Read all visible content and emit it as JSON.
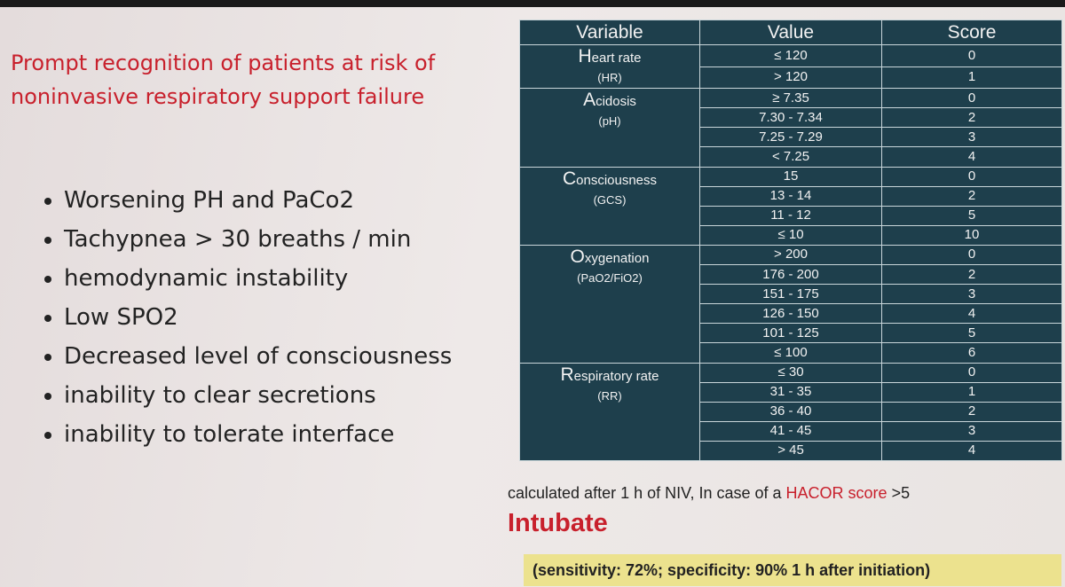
{
  "title": "Prompt recognition of patients at risk of noninvasive respiratory support failure",
  "bullets": [
    "Worsening PH and PaCo2",
    "Tachypnea > 30 breaths / min",
    "hemodynamic instability",
    "Low SPO2",
    "Decreased level of consciousness",
    "inability to clear secretions",
    "inability to tolerate interface"
  ],
  "table": {
    "header": [
      "Variable",
      "Value",
      "Score"
    ],
    "groups": [
      {
        "name": "Heart rate",
        "unit": "(HR)",
        "rows": [
          [
            "≤ 120",
            "0"
          ],
          [
            "> 120",
            "1"
          ]
        ]
      },
      {
        "name": "Acidosis",
        "unit": "(pH)",
        "rows": [
          [
            "≥ 7.35",
            "0"
          ],
          [
            "7.30 - 7.34",
            "2"
          ],
          [
            "7.25 - 7.29",
            "3"
          ],
          [
            "< 7.25",
            "4"
          ]
        ]
      },
      {
        "name": "Consciousness",
        "unit": "(GCS)",
        "rows": [
          [
            "15",
            "0"
          ],
          [
            "13 - 14",
            "2"
          ],
          [
            "11 - 12",
            "5"
          ],
          [
            "≤ 10",
            "10"
          ]
        ]
      },
      {
        "name": "Oxygenation",
        "unit": "(PaO2/FiO2)",
        "rows": [
          [
            "> 200",
            "0"
          ],
          [
            "176 - 200",
            "2"
          ],
          [
            "151 - 175",
            "3"
          ],
          [
            "126 - 150",
            "4"
          ],
          [
            "101 - 125",
            "5"
          ],
          [
            "≤ 100",
            "6"
          ]
        ]
      },
      {
        "name": "Respiratory rate",
        "unit": "(RR)",
        "rows": [
          [
            "≤ 30",
            "0"
          ],
          [
            "31 - 35",
            "1"
          ],
          [
            "36 - 40",
            "2"
          ],
          [
            "41 - 45",
            "3"
          ],
          [
            "> 45",
            "4"
          ]
        ]
      }
    ]
  },
  "note": {
    "prefix": "calculated after 1 h of NIV, In case of a ",
    "highlight": "HACOR score",
    "suffix": " >5"
  },
  "action": "Intubate",
  "stats": "(sensitivity: 72%; specificity: 90% 1 h after initiation)"
}
